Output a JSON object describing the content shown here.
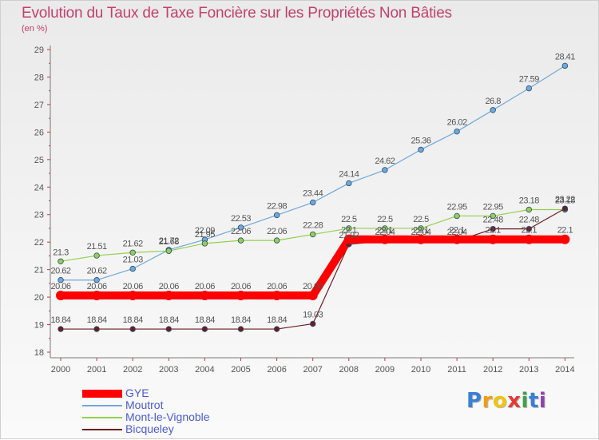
{
  "chart_data": {
    "type": "line",
    "title": "Evolution du Taux de Taxe Foncière sur les Propriétés Non Bâties",
    "unit_label": "(en %)",
    "xlabel": "",
    "ylabel": "",
    "x": [
      "2000",
      "2001",
      "2002",
      "2003",
      "2004",
      "2005",
      "2006",
      "2007",
      "2008",
      "2009",
      "2010",
      "2011",
      "2012",
      "2013",
      "2014"
    ],
    "y_ticks": [
      "18",
      "19",
      "20",
      "21",
      "22",
      "23",
      "24",
      "25",
      "26",
      "27",
      "28",
      "29"
    ],
    "ylim": [
      18,
      29
    ],
    "grid": false,
    "legend_position": "bottom-left",
    "series": [
      {
        "name": "Moutrot",
        "color": "#6fa8dc",
        "values": [
          20.62,
          20.62,
          21.03,
          21.72,
          22.09,
          22.53,
          22.98,
          23.44,
          24.14,
          24.62,
          25.36,
          26.02,
          26.8,
          27.59,
          28.41
        ],
        "labels": [
          "20.62",
          "20.62",
          "21.03",
          "21.72",
          "22.09",
          "22.53",
          "22.98",
          "23.44",
          "24.14",
          "24.62",
          "25.36",
          "26.02",
          "26.8",
          "27.59",
          "28.41"
        ]
      },
      {
        "name": "Mont-le-Vignoble",
        "color": "#93d050",
        "values": [
          21.3,
          21.51,
          21.62,
          21.68,
          21.95,
          22.06,
          22.06,
          22.28,
          22.5,
          22.5,
          22.5,
          22.95,
          22.95,
          23.18,
          23.18
        ],
        "labels": [
          "21.3",
          "21.51",
          "21.62",
          "21.68",
          "21.95",
          "22.06",
          "22.06",
          "22.28",
          "22.5",
          "22.5",
          "22.5",
          "22.95",
          "22.95",
          "23.18",
          "23.18"
        ]
      },
      {
        "name": "Bicqueley",
        "color": "#6b1d24",
        "values": [
          18.84,
          18.84,
          18.84,
          18.84,
          18.84,
          18.84,
          18.84,
          19.03,
          21.92,
          22.04,
          22.04,
          22.04,
          22.48,
          22.48,
          23.22
        ],
        "labels": [
          "18.84",
          "18.84",
          "18.84",
          "18.84",
          "18.84",
          "18.84",
          "18.84",
          "19.03",
          "21.92",
          "22.04",
          "22.04",
          "22.04",
          "22.48",
          "22.48",
          "23.22"
        ]
      },
      {
        "name": "GYE",
        "color": "#ff0000",
        "values": [
          20.06,
          20.06,
          20.06,
          20.06,
          20.06,
          20.06,
          20.06,
          20.06,
          22.1,
          22.1,
          22.1,
          22.1,
          22.1,
          22.1,
          22.1
        ],
        "labels": [
          "20.06",
          "20.06",
          "20.06",
          "20.06",
          "20.06",
          "20.06",
          "20.06",
          "20.06",
          "22.1",
          "22.1",
          "22.1",
          "22.1",
          "22.1",
          "22.1",
          "22.1"
        ]
      }
    ],
    "legend": [
      {
        "name": "GYE",
        "color": "#ff0000"
      },
      {
        "name": "Moutrot",
        "color": "#6fa8dc"
      },
      {
        "name": "Mont-le-Vignoble",
        "color": "#93d050"
      },
      {
        "name": "Bicqueley",
        "color": "#6b1d24"
      }
    ]
  },
  "logo": {
    "text": "Proxiti",
    "letters": [
      {
        "ch": "P",
        "color": "#3a7fd5"
      },
      {
        "ch": "r",
        "color": "#f39c12"
      },
      {
        "ch": "o",
        "color": "#f1c40f"
      },
      {
        "ch": "x",
        "color": "#e53935"
      },
      {
        "ch": "i",
        "color": "#43a047"
      },
      {
        "ch": "t",
        "color": "#3a7fd5"
      },
      {
        "ch": "i",
        "color": "#8e44ad"
      }
    ]
  }
}
